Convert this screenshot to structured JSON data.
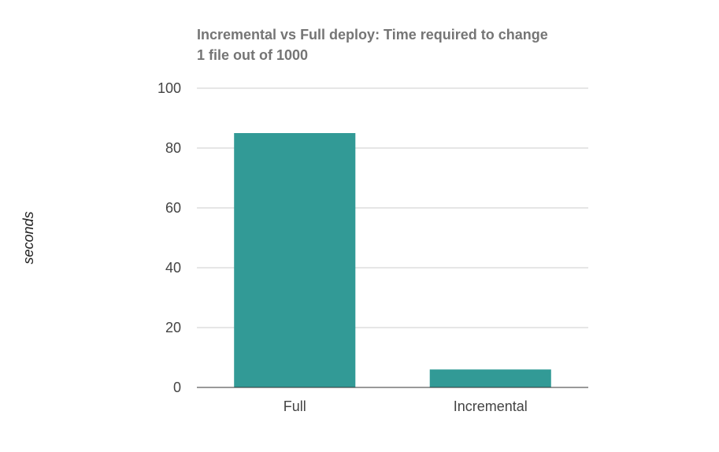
{
  "chart_data": {
    "type": "bar",
    "title": "Incremental vs Full deploy: Time required to change 1 file out of 1000",
    "title_lines": [
      "Incremental vs Full deploy: Time required to change",
      "1 file out of 1000"
    ],
    "xlabel": "",
    "ylabel": "seconds",
    "categories": [
      "Full",
      "Incremental"
    ],
    "values": [
      85,
      6
    ],
    "ylim": [
      0,
      100
    ],
    "yticks": [
      0,
      20,
      40,
      60,
      80,
      100
    ],
    "ytick_labels": [
      "0",
      "20",
      "40",
      "60",
      "80",
      "100"
    ],
    "grid": true,
    "legend": "none",
    "bar_color": "#329A96"
  }
}
